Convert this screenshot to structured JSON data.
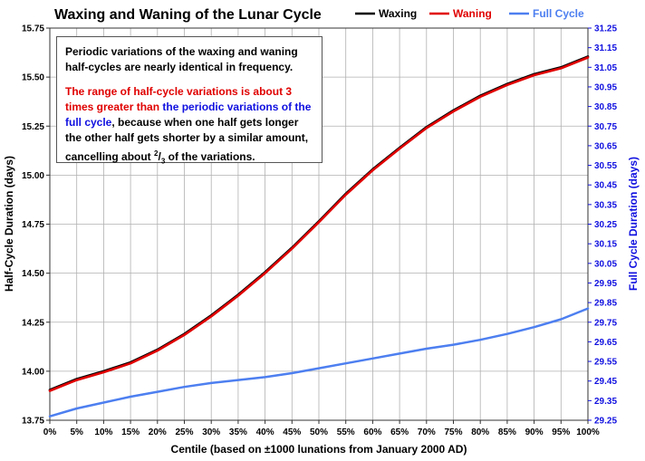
{
  "chart_data": {
    "type": "line",
    "title": "Waxing and Waning of the Lunar Cycle",
    "xlabel": "Centile (based on ±1000 lunations from January 2000 AD)",
    "ylabel": "Half-Cycle Duration (days)",
    "y2label": "Full Cycle Duration (days)",
    "xlim": [
      0,
      100
    ],
    "ylim": [
      13.75,
      15.75
    ],
    "y2lim": [
      29.25,
      31.25
    ],
    "grid": true,
    "legend_position": "top-right",
    "x_ticks": [
      "0%",
      "5%",
      "10%",
      "15%",
      "20%",
      "25%",
      "30%",
      "35%",
      "40%",
      "45%",
      "50%",
      "55%",
      "60%",
      "65%",
      "70%",
      "75%",
      "80%",
      "85%",
      "90%",
      "95%",
      "100%"
    ],
    "y_ticks": [
      "13.75",
      "14.00",
      "14.25",
      "14.50",
      "14.75",
      "15.00",
      "15.25",
      "15.50",
      "15.75"
    ],
    "y2_ticks": [
      "29.25",
      "29.35",
      "29.45",
      "29.55",
      "29.65",
      "29.75",
      "29.85",
      "29.95",
      "30.05",
      "30.15",
      "30.25",
      "30.35",
      "30.45",
      "30.55",
      "30.65",
      "30.75",
      "30.85",
      "30.95",
      "31.05",
      "31.15",
      "31.25"
    ],
    "x": [
      0,
      5,
      10,
      15,
      20,
      25,
      30,
      35,
      40,
      45,
      50,
      55,
      60,
      65,
      70,
      75,
      80,
      85,
      90,
      95,
      100
    ],
    "series": [
      {
        "name": "Waxing",
        "axis": "left",
        "color": "#000000",
        "values": [
          13.905,
          13.96,
          14.0,
          14.045,
          14.11,
          14.19,
          14.285,
          14.39,
          14.505,
          14.63,
          14.765,
          14.905,
          15.03,
          15.14,
          15.245,
          15.33,
          15.405,
          15.465,
          15.515,
          15.55,
          15.605
        ]
      },
      {
        "name": "Waning",
        "axis": "left",
        "color": "#e00000",
        "values": [
          13.9,
          13.955,
          13.995,
          14.04,
          14.105,
          14.185,
          14.28,
          14.385,
          14.5,
          14.625,
          14.76,
          14.9,
          15.025,
          15.135,
          15.24,
          15.325,
          15.4,
          15.46,
          15.51,
          15.545,
          15.6
        ]
      },
      {
        "name": "Full Cycle",
        "axis": "right",
        "color": "#4d7ff0",
        "values": [
          29.27,
          29.31,
          29.34,
          29.37,
          29.395,
          29.42,
          29.44,
          29.455,
          29.47,
          29.49,
          29.515,
          29.54,
          29.565,
          29.59,
          29.615,
          29.635,
          29.66,
          29.69,
          29.725,
          29.765,
          29.82
        ]
      }
    ]
  },
  "note": {
    "line1": "Periodic variations of the waxing and waning half-cycles are nearly identical in frequency.",
    "red_part": "The range of half-cycle variations is about 3 times greater than",
    "blue_part": "the periodic variations of the full cycle",
    "rest_part": ", because when one half gets longer the other half gets shorter by a similar amount, cancelling about",
    "frac_num": "2",
    "frac_den": "3",
    "tail_part": "of the variations."
  }
}
